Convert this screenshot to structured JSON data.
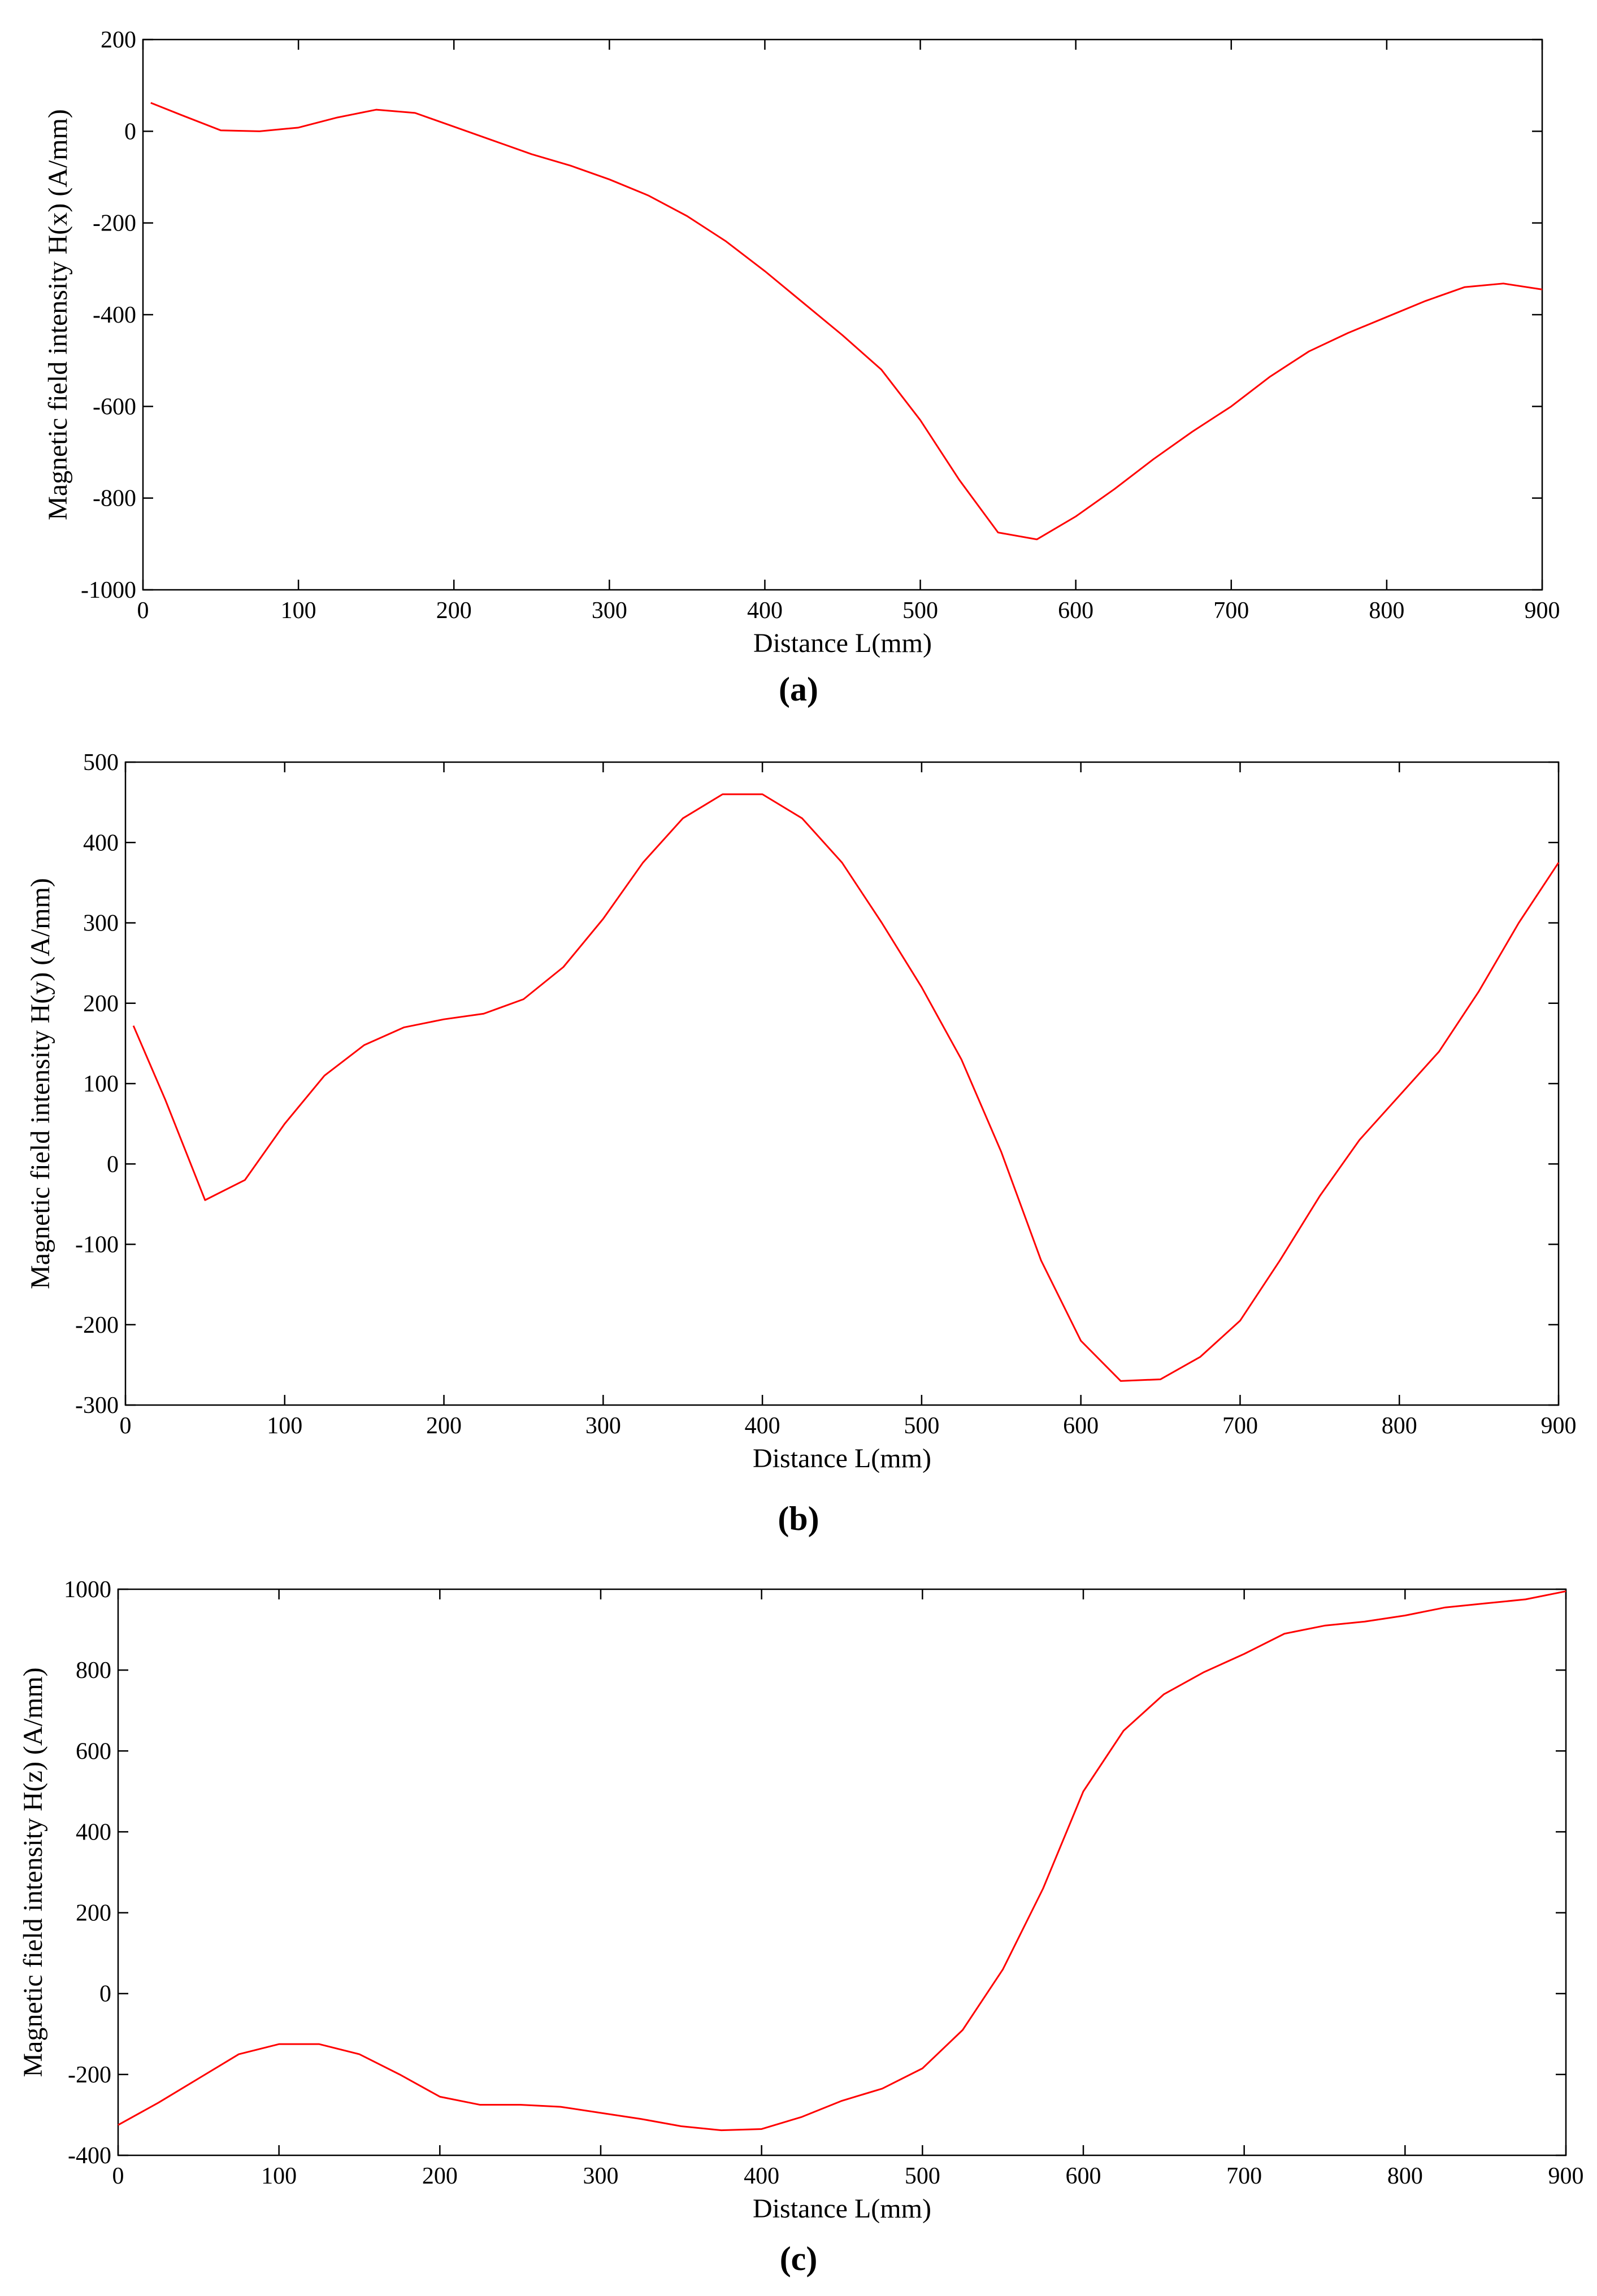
{
  "chart_data": [
    {
      "type": "line",
      "caption": "(a)",
      "xlabel": "Distance L(mm)",
      "ylabel": "Magnetic field intensity H(x) (A/mm)",
      "x": [
        5,
        25,
        50,
        75,
        100,
        125,
        150,
        175,
        200,
        225,
        250,
        275,
        300,
        325,
        350,
        375,
        400,
        425,
        450,
        475,
        500,
        525,
        550,
        575,
        600,
        625,
        650,
        675,
        700,
        725,
        750,
        775,
        800,
        825,
        850,
        875,
        900
      ],
      "series": [
        {
          "color": "#ff0000",
          "values": [
            62,
            35,
            2,
            0,
            8,
            30,
            47,
            40,
            10,
            -20,
            -50,
            -75,
            -105,
            -140,
            -185,
            -240,
            -305,
            -375,
            -445,
            -520,
            -630,
            -760,
            -875,
            -890,
            -840,
            -780,
            -715,
            -655,
            -600,
            -535,
            -480,
            -440,
            -405,
            -370,
            -340,
            -332,
            -345
          ]
        }
      ],
      "xlim": [
        0,
        900
      ],
      "ylim": [
        -1000,
        200
      ],
      "xticks": [
        0,
        100,
        200,
        300,
        400,
        500,
        600,
        700,
        800,
        900
      ],
      "yticks": [
        -1000,
        -800,
        -600,
        -400,
        -200,
        0,
        200
      ]
    },
    {
      "type": "line",
      "caption": "(b)",
      "xlabel": "Distance L(mm)",
      "ylabel": "Magnetic field intensity H(y) (A/mm)",
      "x": [
        5,
        25,
        50,
        75,
        100,
        125,
        150,
        175,
        200,
        225,
        250,
        275,
        300,
        325,
        350,
        375,
        400,
        425,
        450,
        475,
        500,
        525,
        550,
        575,
        600,
        625,
        650,
        675,
        700,
        725,
        750,
        775,
        800,
        825,
        850,
        875,
        900
      ],
      "series": [
        {
          "color": "#ff0000",
          "values": [
            172,
            80,
            -45,
            -20,
            50,
            110,
            148,
            170,
            180,
            187,
            205,
            245,
            305,
            375,
            430,
            460,
            460,
            430,
            375,
            300,
            220,
            130,
            15,
            -120,
            -220,
            -270,
            -268,
            -240,
            -195,
            -120,
            -40,
            30,
            85,
            140,
            215,
            300,
            375
          ]
        }
      ],
      "xlim": [
        0,
        900
      ],
      "ylim": [
        -300,
        500
      ],
      "xticks": [
        0,
        100,
        200,
        300,
        400,
        500,
        600,
        700,
        800,
        900
      ],
      "yticks": [
        -300,
        -200,
        -100,
        0,
        100,
        200,
        300,
        400,
        500
      ]
    },
    {
      "type": "line",
      "caption": "(c)",
      "xlabel": "Distance L(mm)",
      "ylabel": "Magnetic field intensity H(z) (A/mm)",
      "x": [
        0,
        25,
        50,
        75,
        100,
        125,
        150,
        175,
        200,
        225,
        250,
        275,
        300,
        325,
        350,
        375,
        400,
        425,
        450,
        475,
        500,
        525,
        550,
        575,
        600,
        625,
        650,
        675,
        700,
        725,
        750,
        775,
        800,
        825,
        850,
        875,
        900
      ],
      "series": [
        {
          "color": "#ff0000",
          "values": [
            -325,
            -270,
            -210,
            -150,
            -125,
            -125,
            -150,
            -200,
            -255,
            -275,
            -275,
            -280,
            -295,
            -310,
            -328,
            -338,
            -335,
            -305,
            -265,
            -235,
            -185,
            -90,
            60,
            260,
            500,
            650,
            740,
            795,
            840,
            890,
            910,
            920,
            935,
            955,
            965,
            975,
            995
          ]
        }
      ],
      "xlim": [
        0,
        900
      ],
      "ylim": [
        -400,
        1000
      ],
      "xticks": [
        0,
        100,
        200,
        300,
        400,
        500,
        600,
        700,
        800,
        900
      ],
      "yticks": [
        -400,
        -200,
        0,
        200,
        400,
        600,
        800,
        1000
      ]
    }
  ]
}
